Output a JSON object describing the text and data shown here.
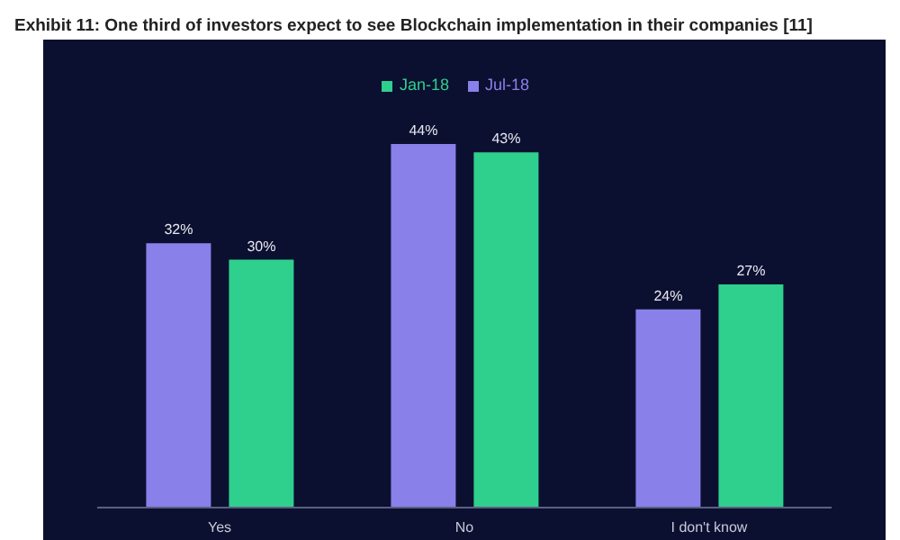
{
  "chart_data": {
    "type": "bar",
    "title": "Exhibit 11: One third of investors expect to see Blockchain implementation in their companies [11]",
    "categories": [
      "Yes",
      "No",
      "I don't know"
    ],
    "series": [
      {
        "name": "Jul-18",
        "color": "#8a80ea",
        "values": [
          32,
          44,
          24
        ],
        "value_labels": [
          "32%",
          "44%",
          "24%"
        ]
      },
      {
        "name": "Jan-18",
        "color": "#2fcf8e",
        "values": [
          30,
          43,
          27
        ],
        "value_labels": [
          "30%",
          "43%",
          "27%"
        ]
      }
    ],
    "legend": "top",
    "grid": false
  }
}
